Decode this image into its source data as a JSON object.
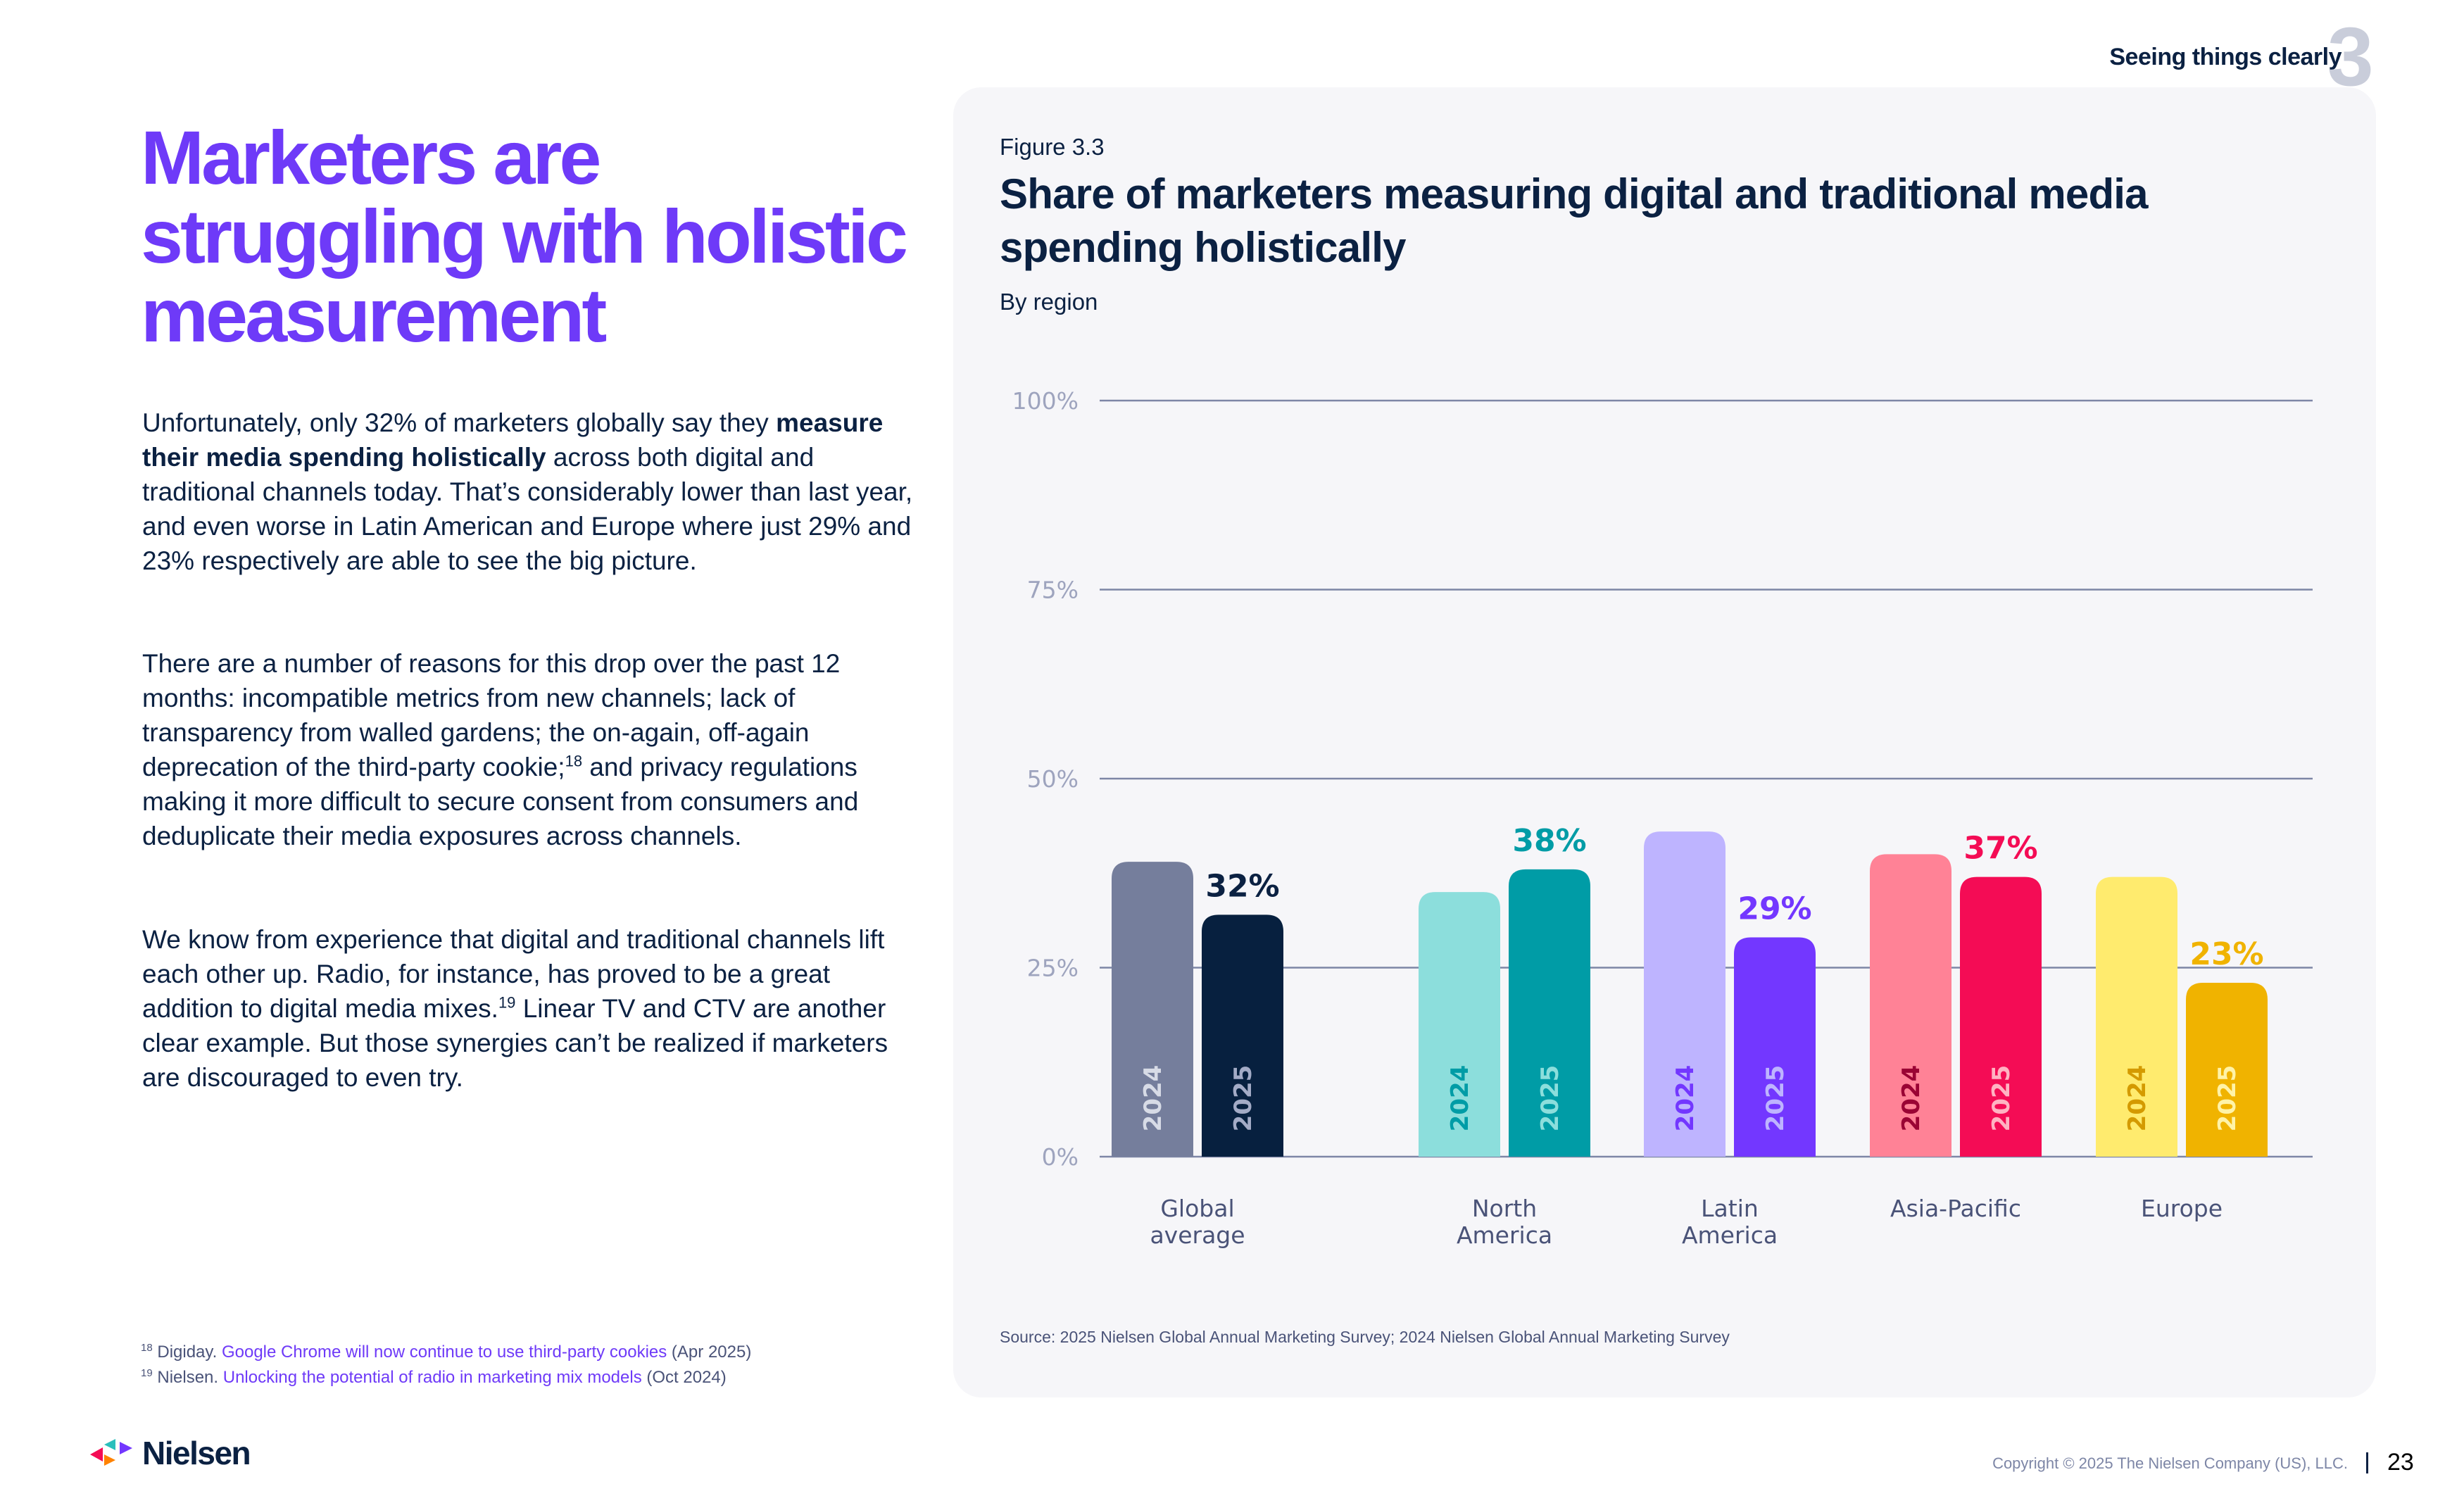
{
  "header": {
    "section_title": "Seeing things clearly",
    "section_number": "3"
  },
  "left": {
    "headline": "Marketers are struggling with holistic measurement",
    "para1": {
      "pre": "Unfortunately, only 32% of marketers globally say they ",
      "bold": "measure their media spending holistically",
      "post": " across both digital and traditional channels today. That’s considerably lower than last year, and even worse in Latin American and Europe where just 29% and 23% respectively are able to see the big picture."
    },
    "para2": {
      "pre": "There are a number of reasons for this drop over the past 12 months: incompatible metrics from new channels; lack of transparency from walled gardens; the on-again, off-again deprecation of the third-party cookie;",
      "sup": "18",
      "post": " and privacy regulations making it more difficult to secure consent from consumers and deduplicate their media exposures across channels."
    },
    "para3": {
      "pre": "We know from experience that digital and traditional channels lift each other up. Radio, for instance, has proved to be a great addition to digital media mixes.",
      "sup": "19",
      "post": " Linear TV and CTV are another clear example. But those synergies can’t be realized if marketers are discouraged to even try."
    },
    "footnotes": [
      {
        "num": "18",
        "source": "Digiday. ",
        "link": "Google Chrome will now continue to use third-party cookies",
        "date": " (Apr 2025)"
      },
      {
        "num": "19",
        "source": "Nielsen. ",
        "link": "Unlocking the potential of radio in marketing mix models",
        "date": " (Oct 2024)"
      }
    ]
  },
  "footer": {
    "logo_text": "Nielsen",
    "copyright": "Copyright © 2025 The Nielsen Company (US), LLC.",
    "page_number": "23"
  },
  "figure": {
    "label": "Figure 3.3",
    "title": "Share of marketers measuring digital and traditional media spending holistically",
    "subtitle": "By region",
    "source": "Source: 2025 Nielsen Global Annual Marketing Survey; 2024 Nielsen Global Annual Marketing Survey"
  },
  "colors": {
    "headline": "#6E3AF8",
    "navy": "#0B2142",
    "gridline": "#7D86A6"
  },
  "chart_data": {
    "type": "bar",
    "title": "Share of marketers measuring digital and traditional media spending holistically",
    "subtitle": "By region",
    "xlabel": "",
    "ylabel": "",
    "ylim": [
      0,
      100
    ],
    "yticks": [
      0,
      25,
      50,
      75,
      100
    ],
    "ytick_labels": [
      "0%",
      "25%",
      "50%",
      "75%",
      "100%"
    ],
    "grid": true,
    "legend": "none (years labeled inside bars)",
    "categories": [
      [
        "Global",
        "average"
      ],
      [
        "North",
        "America"
      ],
      [
        "Latin",
        "America"
      ],
      [
        "Asia-Pacific"
      ],
      [
        "Europe"
      ]
    ],
    "series": [
      {
        "name": "2024",
        "values": [
          39,
          35,
          43,
          40,
          37
        ]
      },
      {
        "name": "2025",
        "values": [
          32,
          38,
          29,
          37,
          23
        ]
      }
    ],
    "value_labels_2025": [
      "32%",
      "38%",
      "29%",
      "37%",
      "23%"
    ],
    "bar_colors": {
      "2024": [
        "#757E9C",
        "#8CDEDC",
        "#BEB4FF",
        "#FF8296",
        "#FFEB6E"
      ],
      "2025": [
        "#07203F",
        "#009CA6",
        "#7337FF",
        "#F40C55",
        "#F0B300"
      ]
    },
    "year_label_colors": {
      "2024": [
        "#D7DBE6",
        "#009CA6",
        "#7337FF",
        "#9A0434",
        "#D49A00"
      ],
      "2025": [
        "#A3ABC6",
        "#8CDEDC",
        "#BEB4FF",
        "#FFB3C2",
        "#FFF3A8"
      ]
    },
    "value_label_colors": [
      "#0B2142",
      "#009CA6",
      "#7337FF",
      "#F40C55",
      "#F0B300"
    ]
  }
}
